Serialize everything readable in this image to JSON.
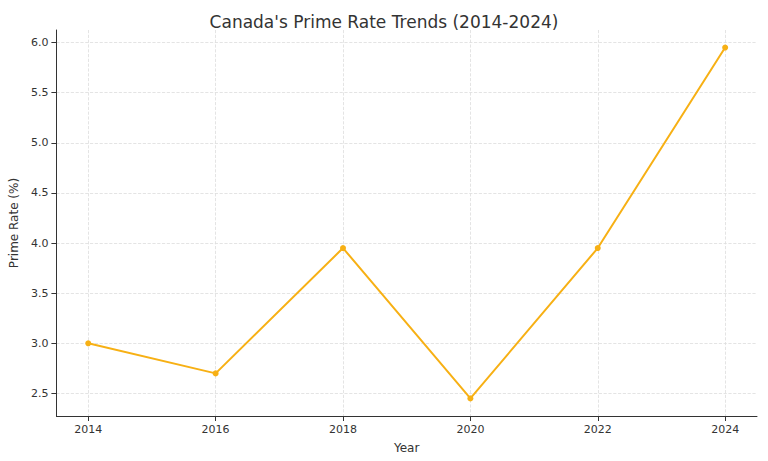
{
  "chart_data": {
    "type": "line",
    "title": "Canada's Prime Rate Trends (2014-2024)",
    "x_label": "Year",
    "y_label": "Prime Rate (%)",
    "x": [
      2014,
      2016,
      2018,
      2020,
      2022,
      2024
    ],
    "values": [
      3.0,
      2.7,
      3.95,
      2.45,
      3.95,
      5.95
    ],
    "color": "#f7b014",
    "marker": "circle",
    "line_style": "solid",
    "xlim": [
      2013.5,
      2024.5
    ],
    "xticks": [
      2014,
      2016,
      2018,
      2020,
      2022,
      2024
    ],
    "ylim": [
      2.275,
      6.125
    ],
    "yticks": [
      2.5,
      {
        "value": 3,
        "label": "3.0"
      },
      3.5,
      {
        "value": 4,
        "label": "4.0"
      },
      4.5,
      {
        "value": 5,
        "label": "5.0"
      },
      5.5,
      {
        "value": 6,
        "label": "6.0"
      }
    ],
    "grid": true
  }
}
